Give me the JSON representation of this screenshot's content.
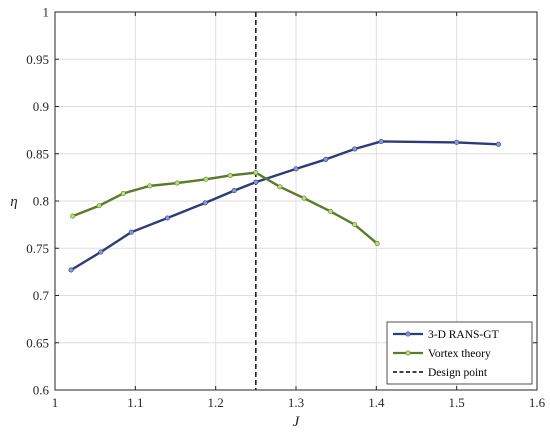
{
  "chart_data": {
    "type": "line",
    "xlabel": "J",
    "ylabel": "η",
    "xlim": [
      1,
      1.6
    ],
    "ylim": [
      0.6,
      1
    ],
    "xticks": [
      1,
      1.1,
      1.2,
      1.3,
      1.4,
      1.5,
      1.6
    ],
    "xtick_labels": [
      "1",
      "1.1",
      "1.2",
      "1.3",
      "1.4",
      "1.5",
      "1.6"
    ],
    "yticks": [
      0.6,
      0.65,
      0.7,
      0.75,
      0.8,
      0.85,
      0.9,
      0.95,
      1
    ],
    "ytick_labels": [
      "0.6",
      "0.65",
      "0.7",
      "0.75",
      "0.8",
      "0.85",
      "0.9",
      "0.95",
      "1"
    ],
    "grid": true,
    "legend_position": "bottom-right",
    "series": [
      {
        "name": "3-D RANS-GT",
        "color": "#2e3a7c",
        "marker_color": "#8a9ad6",
        "x": [
          1.02,
          1.057,
          1.095,
          1.14,
          1.187,
          1.223,
          1.25,
          1.3,
          1.337,
          1.373,
          1.406,
          1.5,
          1.552
        ],
        "y": [
          0.727,
          0.746,
          0.767,
          0.782,
          0.798,
          0.811,
          0.82,
          0.834,
          0.844,
          0.855,
          0.863,
          0.862,
          0.86
        ]
      },
      {
        "name": "Vortex theory",
        "color": "#5a7a2a",
        "marker_color": "#b8e07a",
        "x": [
          1.022,
          1.055,
          1.085,
          1.118,
          1.152,
          1.188,
          1.218,
          1.25,
          1.28,
          1.31,
          1.343,
          1.373,
          1.401
        ],
        "y": [
          0.784,
          0.795,
          0.808,
          0.816,
          0.819,
          0.823,
          0.827,
          0.83,
          0.815,
          0.803,
          0.789,
          0.775,
          0.755
        ]
      }
    ],
    "reference_lines": [
      {
        "name": "Design point",
        "orientation": "vertical",
        "x": 1.25,
        "color": "#000000",
        "style": "dashed"
      }
    ]
  }
}
